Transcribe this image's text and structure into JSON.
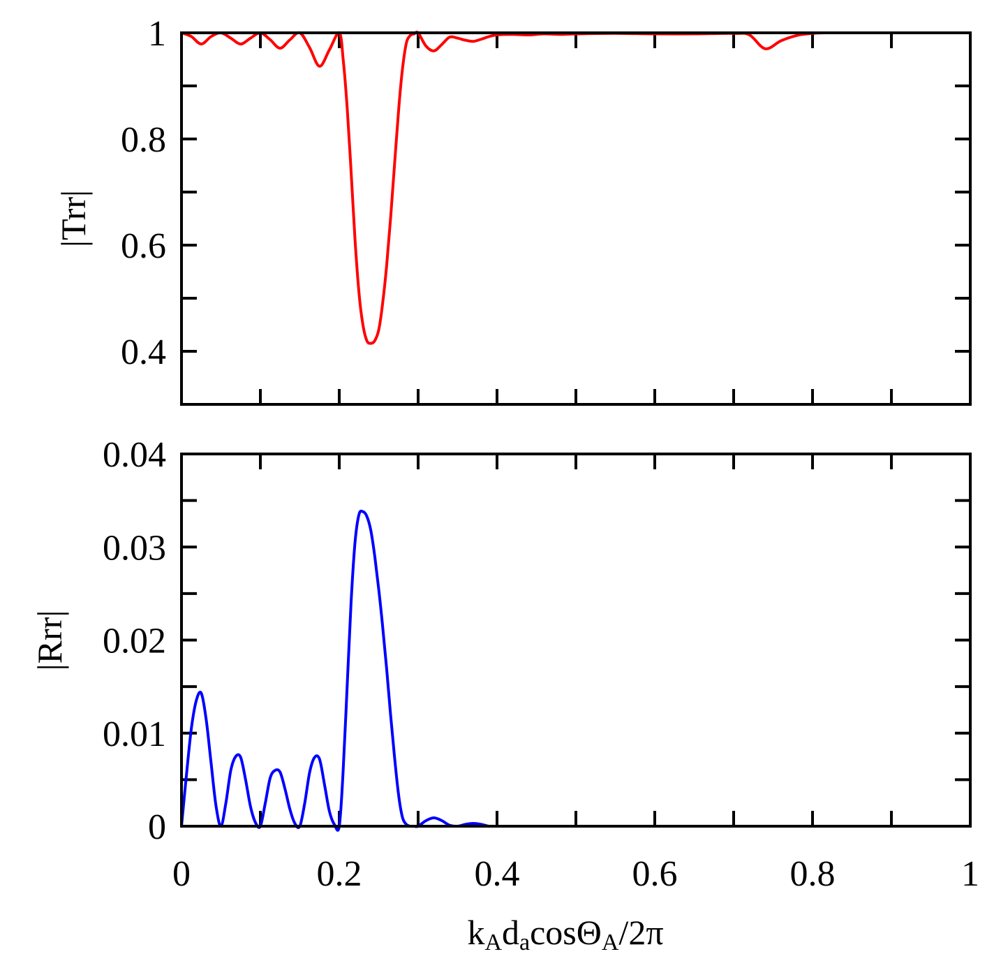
{
  "chart_data": [
    {
      "type": "line",
      "ylabel": "|Trr|",
      "xlim": [
        0,
        1
      ],
      "ylim": [
        0.3,
        1
      ],
      "yticks": [
        "0.4",
        "0.6",
        "0.8",
        "1"
      ],
      "grid": false,
      "series": [
        {
          "color": "#ff0000",
          "x": [
            0,
            0.0125,
            0.025,
            0.0375,
            0.05,
            0.0625,
            0.075,
            0.0875,
            0.1,
            0.1125,
            0.125,
            0.1375,
            0.15,
            0.1625,
            0.175,
            0.1875,
            0.2,
            0.205,
            0.21,
            0.215,
            0.22,
            0.225,
            0.23,
            0.235,
            0.24,
            0.245,
            0.25,
            0.255,
            0.26,
            0.265,
            0.27,
            0.275,
            0.28,
            0.285,
            0.29,
            0.295,
            0.3,
            0.31,
            0.32,
            0.33,
            0.34,
            0.35,
            0.36,
            0.37,
            0.38,
            0.39,
            0.4,
            0.42,
            0.44,
            0.46,
            0.48,
            0.5,
            0.55,
            0.6,
            0.65,
            0.7,
            0.72,
            0.74,
            0.76,
            0.78,
            0.8,
            0.82
          ],
          "y": [
            1.0,
            0.993,
            0.979,
            0.993,
            1.0,
            0.99,
            0.979,
            0.99,
            1.0,
            0.987,
            0.971,
            0.987,
            1.0,
            0.972,
            0.937,
            0.968,
            1.0,
            0.95,
            0.86,
            0.74,
            0.61,
            0.51,
            0.45,
            0.42,
            0.415,
            0.42,
            0.44,
            0.49,
            0.56,
            0.65,
            0.75,
            0.85,
            0.93,
            0.98,
            0.995,
            0.998,
            1.0,
            0.975,
            0.966,
            0.978,
            0.992,
            0.99,
            0.986,
            0.984,
            0.988,
            0.993,
            0.996,
            0.997,
            0.996,
            0.998,
            0.997,
            0.998,
            0.999,
            0.998,
            0.998,
            0.999,
            0.996,
            0.97,
            0.985,
            0.995,
            0.999,
            1.0
          ]
        }
      ]
    },
    {
      "type": "line",
      "xlabel": "k",
      "ylabel": "|Rrr|",
      "xlim": [
        0,
        1
      ],
      "ylim": [
        0,
        0.04
      ],
      "xticks": [
        "0",
        "0.2",
        "0.4",
        "0.6",
        "0.8",
        "1"
      ],
      "yticks": [
        "0",
        "0.01",
        "0.02",
        "0.03",
        "0.04"
      ],
      "grid": false,
      "series": [
        {
          "color": "#0000ff",
          "x": [
            0,
            0.00625,
            0.0125,
            0.01875,
            0.025,
            0.03125,
            0.0375,
            0.04375,
            0.05,
            0.05625,
            0.0625,
            0.06875,
            0.075,
            0.08125,
            0.0875,
            0.09375,
            0.1,
            0.10625,
            0.1125,
            0.11875,
            0.125,
            0.13125,
            0.1375,
            0.14375,
            0.15,
            0.15625,
            0.1625,
            0.16875,
            0.175,
            0.18125,
            0.1875,
            0.19375,
            0.2,
            0.205,
            0.21,
            0.215,
            0.22,
            0.225,
            0.23,
            0.235,
            0.24,
            0.245,
            0.25,
            0.255,
            0.26,
            0.265,
            0.27,
            0.275,
            0.28,
            0.285,
            0.29,
            0.295,
            0.3,
            0.31,
            0.32,
            0.33,
            0.34,
            0.35,
            0.36,
            0.37,
            0.38,
            0.39,
            0.4,
            0.5,
            0.6,
            0.7,
            0.8,
            0.9,
            0.96
          ],
          "y": [
            0,
            0.0055,
            0.0105,
            0.0135,
            0.0143,
            0.0115,
            0.0068,
            0.0022,
            0,
            0.0025,
            0.006,
            0.0075,
            0.0074,
            0.005,
            0.0021,
            0.0004,
            0,
            0.0025,
            0.0052,
            0.006,
            0.0058,
            0.004,
            0.0018,
            0.0003,
            0,
            0.0025,
            0.0058,
            0.0074,
            0.0072,
            0.0045,
            0.0016,
            0.0002,
            0,
            0.006,
            0.015,
            0.024,
            0.0305,
            0.0335,
            0.0338,
            0.0333,
            0.0318,
            0.029,
            0.0255,
            0.0215,
            0.017,
            0.012,
            0.0075,
            0.0035,
            0.001,
            0.0002,
            0,
            0,
            0,
            0.0006,
            0.0009,
            0.0006,
            0.0001,
            0,
            0.0002,
            0.0003,
            0.0002,
            0,
            0,
            0,
            0,
            0,
            0,
            0,
            0
          ]
        }
      ]
    }
  ]
}
